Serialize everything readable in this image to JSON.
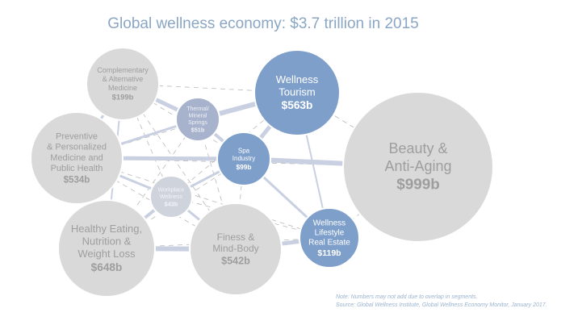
{
  "title": "Global wellness economy: $3.7 trillion in 2015",
  "nodes": [
    {
      "label": [
        "Complementary",
        "& Alternative",
        "Medicine"
      ],
      "value": "$199b"
    },
    {
      "label": [
        "Thermal/",
        "Mineral",
        "Springs"
      ],
      "value": "$51b"
    },
    {
      "label": [
        "Wellness",
        "Tourism"
      ],
      "value": "$563b"
    },
    {
      "label": [
        "Beauty &",
        "Anti-Aging"
      ],
      "value": "$999b"
    },
    {
      "label": [
        "Preventive",
        "& Personalized",
        "Medicine and",
        "Public Health"
      ],
      "value": "$534b"
    },
    {
      "label": [
        "Spa",
        "Industry"
      ],
      "value": "$99b"
    },
    {
      "label": [
        "Workplace",
        "Wellness"
      ],
      "value": "$43b"
    },
    {
      "label": [
        "Healthy Eating,",
        "Nutrition &",
        "Weight Loss"
      ],
      "value": "$648b"
    },
    {
      "label": [
        "Finess &",
        "Mind-Body"
      ],
      "value": "$542b"
    },
    {
      "label": [
        "Wellness",
        "Lifestyle",
        "Real Estate"
      ],
      "value": "$119b"
    }
  ],
  "note": "Note: Numbers may not add due to overlap in segments.",
  "source": "Source: Global Wellness Institute, Global Wellness Economy Monitor, January 2017."
}
